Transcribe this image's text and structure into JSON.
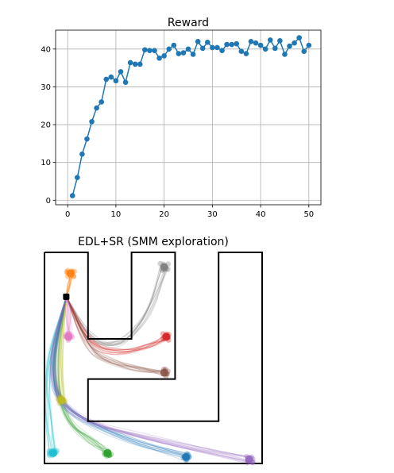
{
  "chart_data": [
    {
      "type": "line",
      "title": "Reward",
      "xlabel": "",
      "ylabel": "",
      "xlim": [
        -2.5,
        52.5
      ],
      "ylim": [
        -1.2,
        45
      ],
      "xticks": [
        0,
        10,
        20,
        30,
        40,
        50
      ],
      "yticks": [
        0,
        10,
        20,
        30,
        40
      ],
      "grid": true,
      "marker": "circle",
      "color": "#1f77b4",
      "x": [
        1,
        2,
        3,
        4,
        5,
        6,
        7,
        8,
        9,
        10,
        11,
        12,
        13,
        14,
        15,
        16,
        17,
        18,
        19,
        20,
        21,
        22,
        23,
        24,
        25,
        26,
        27,
        28,
        29,
        30,
        31,
        32,
        33,
        34,
        35,
        36,
        37,
        38,
        39,
        40,
        41,
        42,
        43,
        44,
        45,
        46,
        47,
        48,
        49,
        50
      ],
      "values": [
        1.2,
        6.0,
        12.2,
        16.2,
        20.8,
        24.4,
        26.0,
        32.0,
        32.6,
        31.6,
        34.0,
        31.2,
        36.4,
        36.0,
        36.0,
        39.8,
        39.6,
        39.6,
        37.6,
        38.2,
        40.0,
        41.0,
        38.8,
        39.0,
        40.0,
        38.6,
        42.0,
        40.2,
        41.8,
        40.4,
        40.4,
        39.6,
        41.2,
        41.2,
        41.4,
        39.4,
        38.8,
        42.0,
        41.6,
        41.0,
        40.0,
        42.4,
        40.2,
        42.2,
        38.6,
        40.8,
        41.6,
        43.0,
        39.4,
        41.0
      ]
    },
    {
      "type": "scatter",
      "title": "EDL+SR (SMM exploration)",
      "description_free": true,
      "start": {
        "x": 0.1,
        "y": 0.79
      },
      "maze": {
        "bounds": [
          0,
          1,
          0,
          1
        ],
        "walls": [
          [
            [
              0,
              1
            ],
            [
              0.2,
              1
            ],
            [
              0.2,
              0.59
            ],
            [
              0.4,
              0.59
            ],
            [
              0.4,
              1
            ],
            [
              0.6,
              1
            ],
            [
              0.6,
              0.4
            ],
            [
              0.2,
              0.4
            ],
            [
              0.2,
              0.2
            ],
            [
              0.8,
              0.2
            ],
            [
              0.8,
              1
            ],
            [
              1,
              1
            ],
            [
              1,
              0
            ],
            [
              0,
              0
            ],
            [
              0,
              1
            ]
          ]
        ]
      },
      "series": [
        {
          "color": "#ff7f0e",
          "end": [
            0.12,
            0.9
          ],
          "via": [
            [
              0.11,
              0.85
            ]
          ]
        },
        {
          "color": "#7f7f7f",
          "end": [
            0.55,
            0.93
          ],
          "via": [
            [
              0.2,
              0.58
            ],
            [
              0.35,
              0.55
            ],
            [
              0.48,
              0.7
            ]
          ]
        },
        {
          "color": "#d62728",
          "end": [
            0.56,
            0.6
          ],
          "via": [
            [
              0.2,
              0.56
            ],
            [
              0.35,
              0.52
            ],
            [
              0.48,
              0.56
            ]
          ]
        },
        {
          "color": "#8c564b",
          "end": [
            0.55,
            0.43
          ],
          "via": [
            [
              0.2,
              0.54
            ],
            [
              0.3,
              0.48
            ],
            [
              0.45,
              0.44
            ]
          ]
        },
        {
          "color": "#e377c2",
          "end": [
            0.11,
            0.6
          ],
          "via": [
            [
              0.11,
              0.7
            ]
          ]
        },
        {
          "color": "#bcbd22",
          "end": [
            0.08,
            0.3
          ],
          "via": [
            [
              0.07,
              0.55
            ]
          ]
        },
        {
          "color": "#17becf",
          "end": [
            0.04,
            0.05
          ],
          "via": [
            [
              0.01,
              0.45
            ],
            [
              0.02,
              0.2
            ]
          ]
        },
        {
          "color": "#2ca02c",
          "end": [
            0.29,
            0.05
          ],
          "via": [
            [
              0.04,
              0.45
            ],
            [
              0.1,
              0.2
            ],
            [
              0.22,
              0.1
            ]
          ]
        },
        {
          "color": "#1f77b4",
          "end": [
            0.65,
            0.03
          ],
          "via": [
            [
              0.02,
              0.45
            ],
            [
              0.08,
              0.25
            ],
            [
              0.4,
              0.1
            ]
          ]
        },
        {
          "color": "#9467bd",
          "end": [
            0.94,
            0.02
          ],
          "via": [
            [
              0.02,
              0.45
            ],
            [
              0.1,
              0.22
            ],
            [
              0.55,
              0.1
            ]
          ]
        }
      ]
    }
  ]
}
